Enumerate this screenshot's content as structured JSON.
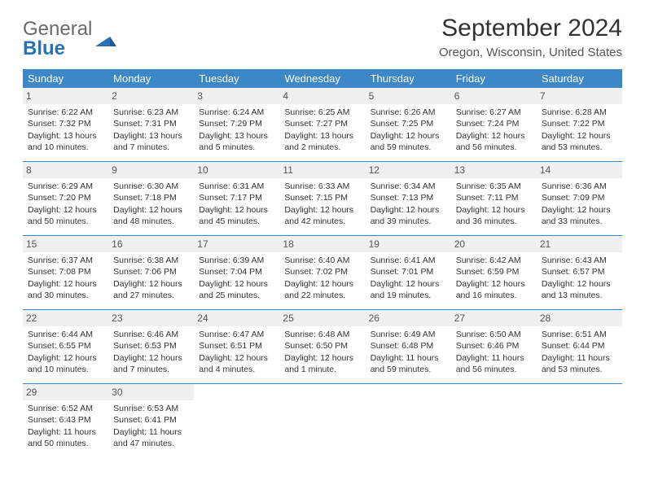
{
  "brand": {
    "part1": "General",
    "part2": "Blue"
  },
  "title": "September 2024",
  "location": "Oregon, Wisconsin, United States",
  "header_bg": "#3b87c8",
  "border_color": "#3b87c8",
  "dayname_bg": "#f0f0f0",
  "weekdays": [
    "Sunday",
    "Monday",
    "Tuesday",
    "Wednesday",
    "Thursday",
    "Friday",
    "Saturday"
  ],
  "weeks": [
    [
      {
        "day": "1",
        "sunrise": "Sunrise: 6:22 AM",
        "sunset": "Sunset: 7:32 PM",
        "daylight1": "Daylight: 13 hours",
        "daylight2": "and 10 minutes."
      },
      {
        "day": "2",
        "sunrise": "Sunrise: 6:23 AM",
        "sunset": "Sunset: 7:31 PM",
        "daylight1": "Daylight: 13 hours",
        "daylight2": "and 7 minutes."
      },
      {
        "day": "3",
        "sunrise": "Sunrise: 6:24 AM",
        "sunset": "Sunset: 7:29 PM",
        "daylight1": "Daylight: 13 hours",
        "daylight2": "and 5 minutes."
      },
      {
        "day": "4",
        "sunrise": "Sunrise: 6:25 AM",
        "sunset": "Sunset: 7:27 PM",
        "daylight1": "Daylight: 13 hours",
        "daylight2": "and 2 minutes."
      },
      {
        "day": "5",
        "sunrise": "Sunrise: 6:26 AM",
        "sunset": "Sunset: 7:25 PM",
        "daylight1": "Daylight: 12 hours",
        "daylight2": "and 59 minutes."
      },
      {
        "day": "6",
        "sunrise": "Sunrise: 6:27 AM",
        "sunset": "Sunset: 7:24 PM",
        "daylight1": "Daylight: 12 hours",
        "daylight2": "and 56 minutes."
      },
      {
        "day": "7",
        "sunrise": "Sunrise: 6:28 AM",
        "sunset": "Sunset: 7:22 PM",
        "daylight1": "Daylight: 12 hours",
        "daylight2": "and 53 minutes."
      }
    ],
    [
      {
        "day": "8",
        "sunrise": "Sunrise: 6:29 AM",
        "sunset": "Sunset: 7:20 PM",
        "daylight1": "Daylight: 12 hours",
        "daylight2": "and 50 minutes."
      },
      {
        "day": "9",
        "sunrise": "Sunrise: 6:30 AM",
        "sunset": "Sunset: 7:18 PM",
        "daylight1": "Daylight: 12 hours",
        "daylight2": "and 48 minutes."
      },
      {
        "day": "10",
        "sunrise": "Sunrise: 6:31 AM",
        "sunset": "Sunset: 7:17 PM",
        "daylight1": "Daylight: 12 hours",
        "daylight2": "and 45 minutes."
      },
      {
        "day": "11",
        "sunrise": "Sunrise: 6:33 AM",
        "sunset": "Sunset: 7:15 PM",
        "daylight1": "Daylight: 12 hours",
        "daylight2": "and 42 minutes."
      },
      {
        "day": "12",
        "sunrise": "Sunrise: 6:34 AM",
        "sunset": "Sunset: 7:13 PM",
        "daylight1": "Daylight: 12 hours",
        "daylight2": "and 39 minutes."
      },
      {
        "day": "13",
        "sunrise": "Sunrise: 6:35 AM",
        "sunset": "Sunset: 7:11 PM",
        "daylight1": "Daylight: 12 hours",
        "daylight2": "and 36 minutes."
      },
      {
        "day": "14",
        "sunrise": "Sunrise: 6:36 AM",
        "sunset": "Sunset: 7:09 PM",
        "daylight1": "Daylight: 12 hours",
        "daylight2": "and 33 minutes."
      }
    ],
    [
      {
        "day": "15",
        "sunrise": "Sunrise: 6:37 AM",
        "sunset": "Sunset: 7:08 PM",
        "daylight1": "Daylight: 12 hours",
        "daylight2": "and 30 minutes."
      },
      {
        "day": "16",
        "sunrise": "Sunrise: 6:38 AM",
        "sunset": "Sunset: 7:06 PM",
        "daylight1": "Daylight: 12 hours",
        "daylight2": "and 27 minutes."
      },
      {
        "day": "17",
        "sunrise": "Sunrise: 6:39 AM",
        "sunset": "Sunset: 7:04 PM",
        "daylight1": "Daylight: 12 hours",
        "daylight2": "and 25 minutes."
      },
      {
        "day": "18",
        "sunrise": "Sunrise: 6:40 AM",
        "sunset": "Sunset: 7:02 PM",
        "daylight1": "Daylight: 12 hours",
        "daylight2": "and 22 minutes."
      },
      {
        "day": "19",
        "sunrise": "Sunrise: 6:41 AM",
        "sunset": "Sunset: 7:01 PM",
        "daylight1": "Daylight: 12 hours",
        "daylight2": "and 19 minutes."
      },
      {
        "day": "20",
        "sunrise": "Sunrise: 6:42 AM",
        "sunset": "Sunset: 6:59 PM",
        "daylight1": "Daylight: 12 hours",
        "daylight2": "and 16 minutes."
      },
      {
        "day": "21",
        "sunrise": "Sunrise: 6:43 AM",
        "sunset": "Sunset: 6:57 PM",
        "daylight1": "Daylight: 12 hours",
        "daylight2": "and 13 minutes."
      }
    ],
    [
      {
        "day": "22",
        "sunrise": "Sunrise: 6:44 AM",
        "sunset": "Sunset: 6:55 PM",
        "daylight1": "Daylight: 12 hours",
        "daylight2": "and 10 minutes."
      },
      {
        "day": "23",
        "sunrise": "Sunrise: 6:46 AM",
        "sunset": "Sunset: 6:53 PM",
        "daylight1": "Daylight: 12 hours",
        "daylight2": "and 7 minutes."
      },
      {
        "day": "24",
        "sunrise": "Sunrise: 6:47 AM",
        "sunset": "Sunset: 6:51 PM",
        "daylight1": "Daylight: 12 hours",
        "daylight2": "and 4 minutes."
      },
      {
        "day": "25",
        "sunrise": "Sunrise: 6:48 AM",
        "sunset": "Sunset: 6:50 PM",
        "daylight1": "Daylight: 12 hours",
        "daylight2": "and 1 minute."
      },
      {
        "day": "26",
        "sunrise": "Sunrise: 6:49 AM",
        "sunset": "Sunset: 6:48 PM",
        "daylight1": "Daylight: 11 hours",
        "daylight2": "and 59 minutes."
      },
      {
        "day": "27",
        "sunrise": "Sunrise: 6:50 AM",
        "sunset": "Sunset: 6:46 PM",
        "daylight1": "Daylight: 11 hours",
        "daylight2": "and 56 minutes."
      },
      {
        "day": "28",
        "sunrise": "Sunrise: 6:51 AM",
        "sunset": "Sunset: 6:44 PM",
        "daylight1": "Daylight: 11 hours",
        "daylight2": "and 53 minutes."
      }
    ],
    [
      {
        "day": "29",
        "sunrise": "Sunrise: 6:52 AM",
        "sunset": "Sunset: 6:43 PM",
        "daylight1": "Daylight: 11 hours",
        "daylight2": "and 50 minutes."
      },
      {
        "day": "30",
        "sunrise": "Sunrise: 6:53 AM",
        "sunset": "Sunset: 6:41 PM",
        "daylight1": "Daylight: 11 hours",
        "daylight2": "and 47 minutes."
      },
      {
        "empty": true
      },
      {
        "empty": true
      },
      {
        "empty": true
      },
      {
        "empty": true
      },
      {
        "empty": true
      }
    ]
  ]
}
